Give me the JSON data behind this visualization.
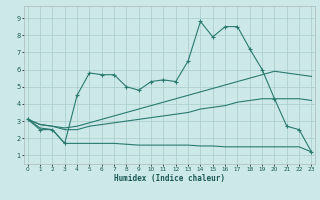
{
  "xlabel": "Humidex (Indice chaleur)",
  "bg_color": "#cce8e8",
  "grid_color": "#aacccc",
  "line_color": "#2a7a70",
  "x_ticks": [
    0,
    1,
    2,
    3,
    4,
    5,
    6,
    7,
    8,
    9,
    10,
    11,
    12,
    13,
    14,
    15,
    16,
    17,
    18,
    19,
    20,
    21,
    22,
    23
  ],
  "y_ticks": [
    1,
    2,
    3,
    4,
    5,
    6,
    7,
    8,
    9
  ],
  "ylim": [
    0.5,
    9.7
  ],
  "xlim": [
    -0.3,
    23.3
  ],
  "series": [
    [
      3.1,
      2.5,
      2.5,
      1.7,
      4.5,
      5.8,
      5.7,
      5.7,
      5.0,
      4.8,
      5.3,
      5.4,
      5.3,
      6.5,
      8.8,
      7.9,
      8.5,
      8.5,
      7.2,
      6.0,
      4.3,
      2.7,
      2.5,
      1.2
    ],
    [
      3.1,
      2.8,
      2.7,
      2.5,
      2.5,
      2.7,
      2.8,
      2.9,
      3.0,
      3.1,
      3.2,
      3.3,
      3.4,
      3.5,
      3.7,
      3.8,
      3.9,
      4.1,
      4.2,
      4.3,
      4.3,
      4.3,
      4.3,
      4.2
    ],
    [
      3.1,
      2.8,
      2.7,
      2.6,
      2.7,
      2.9,
      3.1,
      3.3,
      3.5,
      3.7,
      3.9,
      4.1,
      4.3,
      4.5,
      4.7,
      4.9,
      5.1,
      5.3,
      5.5,
      5.7,
      5.9,
      5.8,
      5.7,
      5.6
    ],
    [
      3.1,
      2.6,
      2.5,
      1.7,
      1.7,
      1.7,
      1.7,
      1.7,
      1.65,
      1.6,
      1.6,
      1.6,
      1.6,
      1.6,
      1.55,
      1.55,
      1.5,
      1.5,
      1.5,
      1.5,
      1.5,
      1.5,
      1.5,
      1.2
    ]
  ]
}
